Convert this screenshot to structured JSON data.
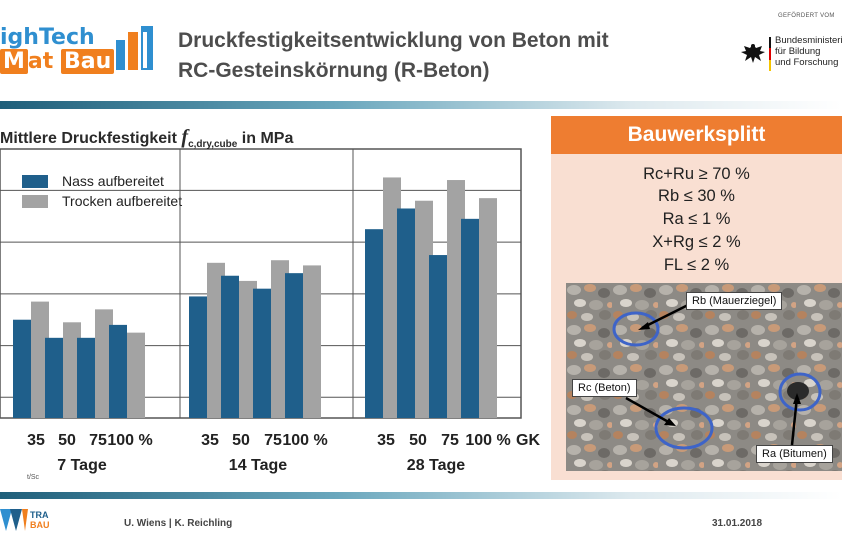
{
  "header": {
    "logo_line1": "ighTech",
    "logo_line2a": "at",
    "logo_line2b": "Bau",
    "logo_line2_prefix": "M",
    "title_line1": "Druckfestigkeitsentwicklung von Beton mit",
    "title_line2": "RC-Gesteinskörnung (R-Beton)",
    "sponsor_top": "GEFÖRDERT VOM",
    "sponsor_line1": "Bundesministeriu",
    "sponsor_line2": "für Bildung",
    "sponsor_line3": "und Forschung"
  },
  "chart_data": {
    "type": "bar",
    "title_prefix": "Mittlere Druckfestigkeit",
    "title_var": "f",
    "title_sub": "c,dry,cube",
    "title_suffix": "in MPa",
    "groups": [
      "7 Tage",
      "14 Tage",
      "28 Tage"
    ],
    "categories": [
      "35",
      "50",
      "75",
      "100 %"
    ],
    "x_suffix": "GK",
    "series": [
      {
        "name": "Nass aufbereitet",
        "color": "#1f5f8b",
        "values": [
          [
            40,
            36.5,
            36.5,
            39
          ],
          [
            44.5,
            48.5,
            46,
            49
          ],
          [
            57.5,
            61.5,
            52.5,
            59.5
          ]
        ]
      },
      {
        "name": "Trocken aufbereitet",
        "color": "#a3a3a3",
        "values": [
          [
            43.5,
            39.5,
            42,
            37.5
          ],
          [
            51,
            47.5,
            51.5,
            50.5
          ],
          [
            67.5,
            63,
            67,
            63.5
          ]
        ]
      }
    ],
    "ylim": [
      21,
      73
    ],
    "grid": true,
    "legend": "top-left",
    "source_text": "t/Sc"
  },
  "panel": {
    "title": "Bauwerksplitt",
    "criteria": [
      "Rc+Ru ≥ 70 %",
      "Rb ≤ 30 %",
      "Ra ≤ 1 %",
      "X+Rg ≤ 2 %",
      "FL ≤ 2 %"
    ],
    "labels": {
      "rb": "Rb (Mauerziegel)",
      "rc": "Rc (Beton)",
      "ra": "Ra (Bitumen)"
    }
  },
  "footer": {
    "authors": "U. Wiens | K. Reichling",
    "date": "31.01.2018",
    "logo_text1": "TRA",
    "logo_text2": "BAU"
  },
  "colors": {
    "accent_orange": "#ee7d31",
    "panel_bg": "#f9dfd2",
    "nass": "#1f5f8b",
    "trocken": "#a3a3a3"
  }
}
